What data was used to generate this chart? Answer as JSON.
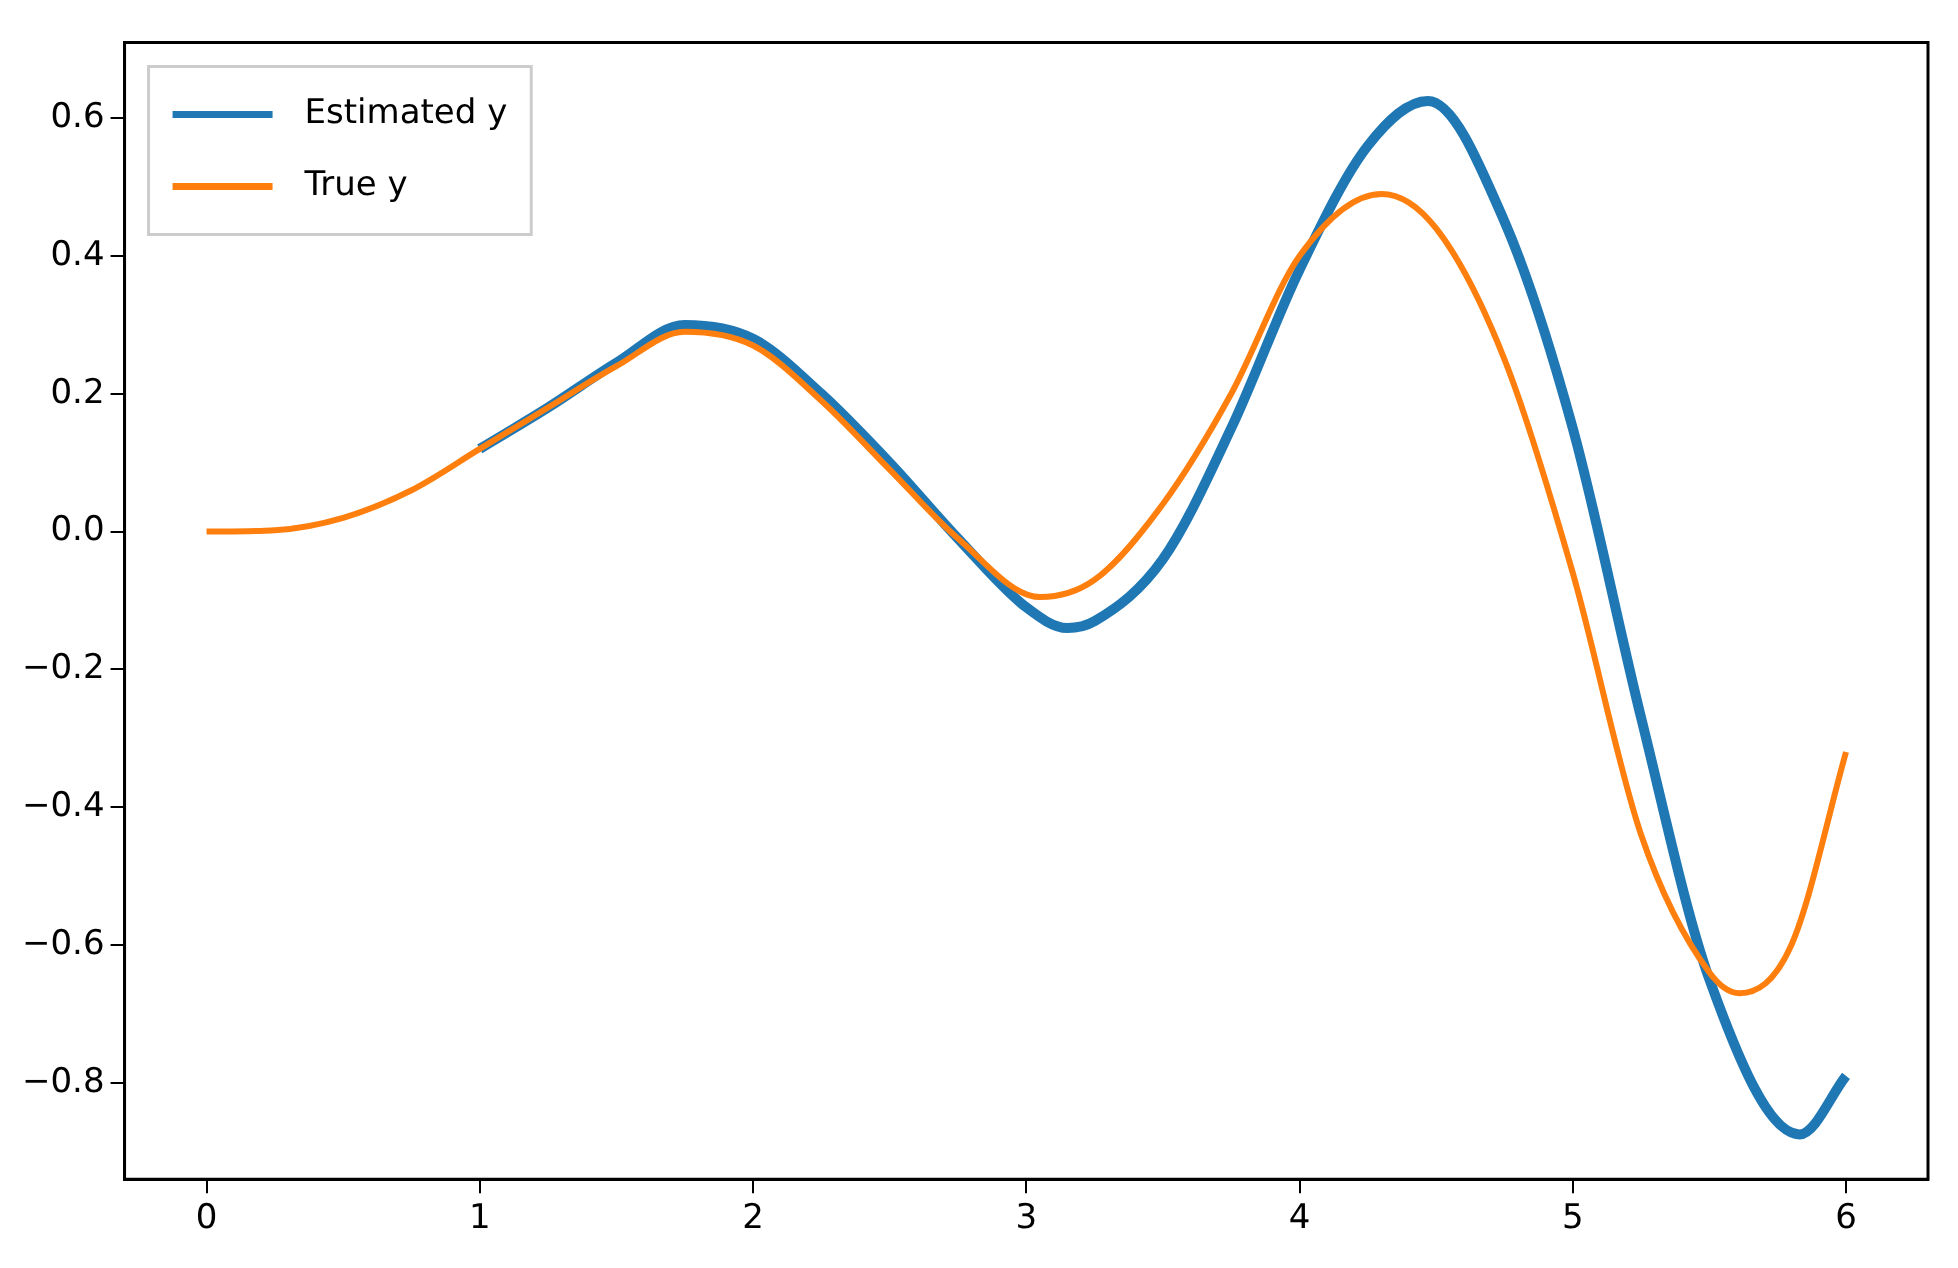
{
  "chart_data": {
    "type": "line",
    "legend": "top left",
    "grid": false,
    "marker": "none",
    "line_style": "solid",
    "xlim": [
      -0.3,
      6.3
    ],
    "xticks": [
      0,
      1,
      2,
      3,
      4,
      5,
      6
    ],
    "ylim": [
      -0.94,
      0.71
    ],
    "yticks": [
      -0.8,
      -0.6,
      -0.4,
      -0.2,
      {
        "value": 0,
        "label": "0.0"
      },
      0.2,
      0.4,
      0.6
    ],
    "series": [
      {
        "name": "Estimated y",
        "color": "#1f77b4",
        "x": [
          1,
          1.25,
          1.5,
          1.75,
          2,
          2.25,
          2.5,
          2.75,
          3,
          3.15,
          3.25,
          3.5,
          3.75,
          4,
          4.25,
          4.47,
          4.75,
          5,
          5.25,
          5.5,
          5.83,
          6
        ],
        "values": [
          0.12,
          0.18,
          0.245,
          0.3,
          0.28,
          0.2,
          0.1,
          -0.01,
          -0.11,
          -0.14,
          -0.13,
          -0.04,
          0.15,
          0.38,
          0.56,
          0.625,
          0.45,
          0.15,
          -0.27,
          -0.65,
          -0.875,
          -0.79
        ]
      },
      {
        "name": "True y",
        "color": "#ff7f0e",
        "x": [
          0,
          0.25,
          0.5,
          0.75,
          1,
          1.25,
          1.5,
          1.75,
          2,
          2.25,
          2.5,
          2.75,
          3.05,
          3.25,
          3.5,
          3.75,
          4,
          4.3,
          4.5,
          4.75,
          5,
          5.25,
          5.5,
          5.61,
          5.8,
          6
        ],
        "values": [
          0,
          0.002,
          0.02,
          0.06,
          0.12,
          0.18,
          0.24,
          0.29,
          0.27,
          0.19,
          0.09,
          -0.01,
          -0.095,
          -0.07,
          0.04,
          0.2,
          0.4,
          0.49,
          0.44,
          0.25,
          -0.06,
          -0.44,
          -0.64,
          -0.67,
          -0.6,
          -0.32
        ]
      }
    ]
  }
}
